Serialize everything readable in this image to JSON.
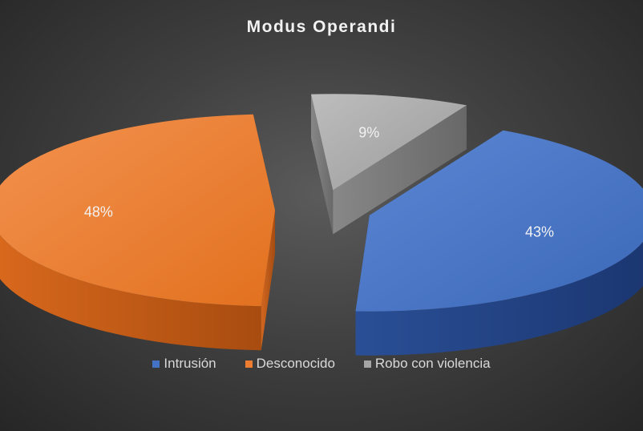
{
  "chart_data": {
    "type": "pie",
    "title": "Modus Operandi",
    "categories": [
      "Intrusión",
      "Desconocido",
      "Robo con violencia"
    ],
    "values": [
      43,
      48,
      9
    ],
    "data_labels": [
      "43%",
      "48%",
      "9%"
    ],
    "colors": [
      "#4472C4",
      "#ED7D31",
      "#A5A5A5"
    ],
    "style": "3d-exploded",
    "legend_position": "bottom"
  }
}
